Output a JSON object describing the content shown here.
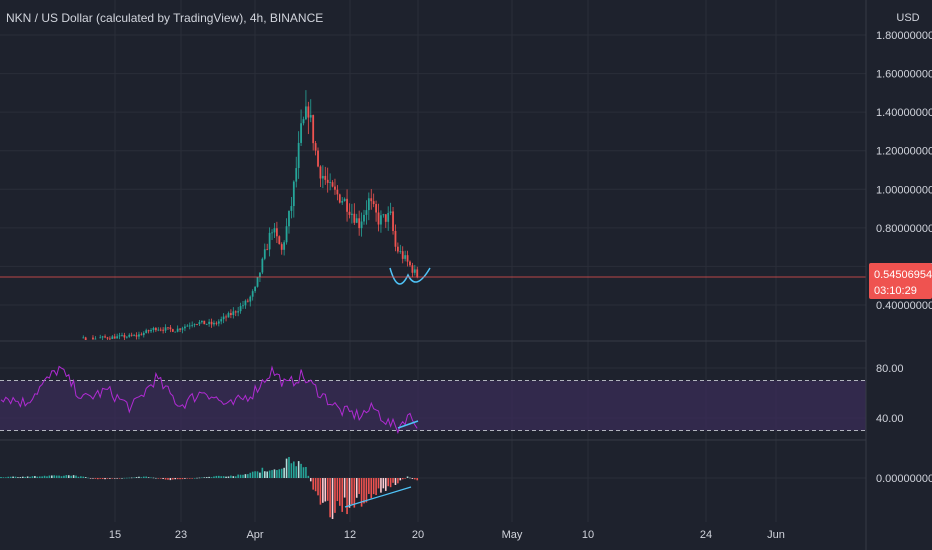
{
  "header": {
    "title": "NKN / US Dollar (calculated by TradingView), 4h, BINANCE",
    "currency": "USD"
  },
  "colors": {
    "background": "#1e222d",
    "grid": "#2a2e39",
    "bull": "#26a69a",
    "bear": "#ef5350",
    "rsi_line": "#b02bd3",
    "rsi_band": "#3b2c5a",
    "annotation": "#4fc3f7",
    "price_tag": "#ef5350"
  },
  "price_tag": {
    "value": "0.54506954",
    "countdown": "03:10:29"
  },
  "chart_data": [
    {
      "type": "candlestick",
      "pane": "price",
      "title": "NKN / US Dollar (calculated by TradingView), 4h, BINANCE",
      "ylabel": "USD",
      "ylim": [
        0.4,
        1.8
      ],
      "y_ticks": [
        "1.80000000",
        "1.60000000",
        "1.40000000",
        "1.20000000",
        "1.00000000",
        "0.80000000",
        "0.60000000",
        "0.40000000"
      ],
      "y_tick_values": [
        1.8,
        1.6,
        1.4,
        1.2,
        1.0,
        0.8,
        0.6,
        0.4
      ],
      "x_ticks": [
        "15",
        "23",
        "Apr",
        "12",
        "20",
        "May",
        "10",
        "24",
        "Jun"
      ],
      "current_price": 0.54506954,
      "trend": [
        {
          "t": 0,
          "c": 0.2
        },
        {
          "t": 56,
          "c": 0.24
        },
        {
          "t": 64,
          "c": 0.28
        },
        {
          "t": 72,
          "c": 0.27
        },
        {
          "t": 80,
          "c": 0.31
        },
        {
          "t": 88,
          "c": 0.3
        },
        {
          "t": 96,
          "c": 0.36
        },
        {
          "t": 102,
          "c": 0.42
        },
        {
          "t": 105,
          "c": 0.48
        },
        {
          "t": 108,
          "c": 0.62
        },
        {
          "t": 112,
          "c": 0.8
        },
        {
          "t": 116,
          "c": 0.68
        },
        {
          "t": 120,
          "c": 0.92
        },
        {
          "t": 124,
          "c": 1.3
        },
        {
          "t": 127,
          "c": 1.42
        },
        {
          "t": 131,
          "c": 1.12
        },
        {
          "t": 136,
          "c": 1.0
        },
        {
          "t": 142,
          "c": 0.94
        },
        {
          "t": 148,
          "c": 0.82
        },
        {
          "t": 152,
          "c": 0.94
        },
        {
          "t": 156,
          "c": 0.84
        },
        {
          "t": 161,
          "c": 0.86
        },
        {
          "t": 163,
          "c": 0.7
        },
        {
          "t": 168,
          "c": 0.62
        },
        {
          "t": 172,
          "c": 0.55
        }
      ],
      "annotation": "head-and-shoulders style double dip drawn near the latest candles"
    },
    {
      "type": "line",
      "pane": "rsi",
      "ylim": [
        25,
        100
      ],
      "y_ticks": [
        "80.00",
        "40.00"
      ],
      "y_tick_values": [
        80,
        40
      ],
      "band": [
        30,
        70
      ],
      "trend": [
        {
          "t": 0,
          "v": 58
        },
        {
          "t": 10,
          "v": 52
        },
        {
          "t": 24,
          "v": 80
        },
        {
          "t": 34,
          "v": 55
        },
        {
          "t": 44,
          "v": 62
        },
        {
          "t": 54,
          "v": 48
        },
        {
          "t": 64,
          "v": 72
        },
        {
          "t": 74,
          "v": 50
        },
        {
          "t": 84,
          "v": 62
        },
        {
          "t": 94,
          "v": 49
        },
        {
          "t": 104,
          "v": 60
        },
        {
          "t": 112,
          "v": 78
        },
        {
          "t": 118,
          "v": 66
        },
        {
          "t": 124,
          "v": 74
        },
        {
          "t": 132,
          "v": 60
        },
        {
          "t": 140,
          "v": 46
        },
        {
          "t": 148,
          "v": 42
        },
        {
          "t": 154,
          "v": 48
        },
        {
          "t": 160,
          "v": 36
        },
        {
          "t": 164,
          "v": 32
        },
        {
          "t": 168,
          "v": 42
        },
        {
          "t": 172,
          "v": 36
        }
      ]
    },
    {
      "type": "histogram",
      "pane": "macd",
      "ylim": [
        -0.09,
        0.09
      ],
      "y_ticks": [
        "0.00000000"
      ],
      "y_tick_values": [
        0
      ],
      "trend": [
        {
          "t": 0,
          "v": 0.002
        },
        {
          "t": 20,
          "v": 0.004
        },
        {
          "t": 30,
          "v": 0.006
        },
        {
          "t": 40,
          "v": -0.003
        },
        {
          "t": 60,
          "v": 0.003
        },
        {
          "t": 70,
          "v": -0.004
        },
        {
          "t": 90,
          "v": 0.004
        },
        {
          "t": 100,
          "v": 0.006
        },
        {
          "t": 108,
          "v": 0.02
        },
        {
          "t": 114,
          "v": 0.014
        },
        {
          "t": 120,
          "v": 0.05
        },
        {
          "t": 126,
          "v": 0.018
        },
        {
          "t": 130,
          "v": -0.04
        },
        {
          "t": 135,
          "v": -0.075
        },
        {
          "t": 142,
          "v": -0.065
        },
        {
          "t": 150,
          "v": -0.045
        },
        {
          "t": 158,
          "v": -0.025
        },
        {
          "t": 164,
          "v": -0.01
        },
        {
          "t": 168,
          "v": 0.003
        },
        {
          "t": 172,
          "v": -0.006
        }
      ]
    }
  ]
}
